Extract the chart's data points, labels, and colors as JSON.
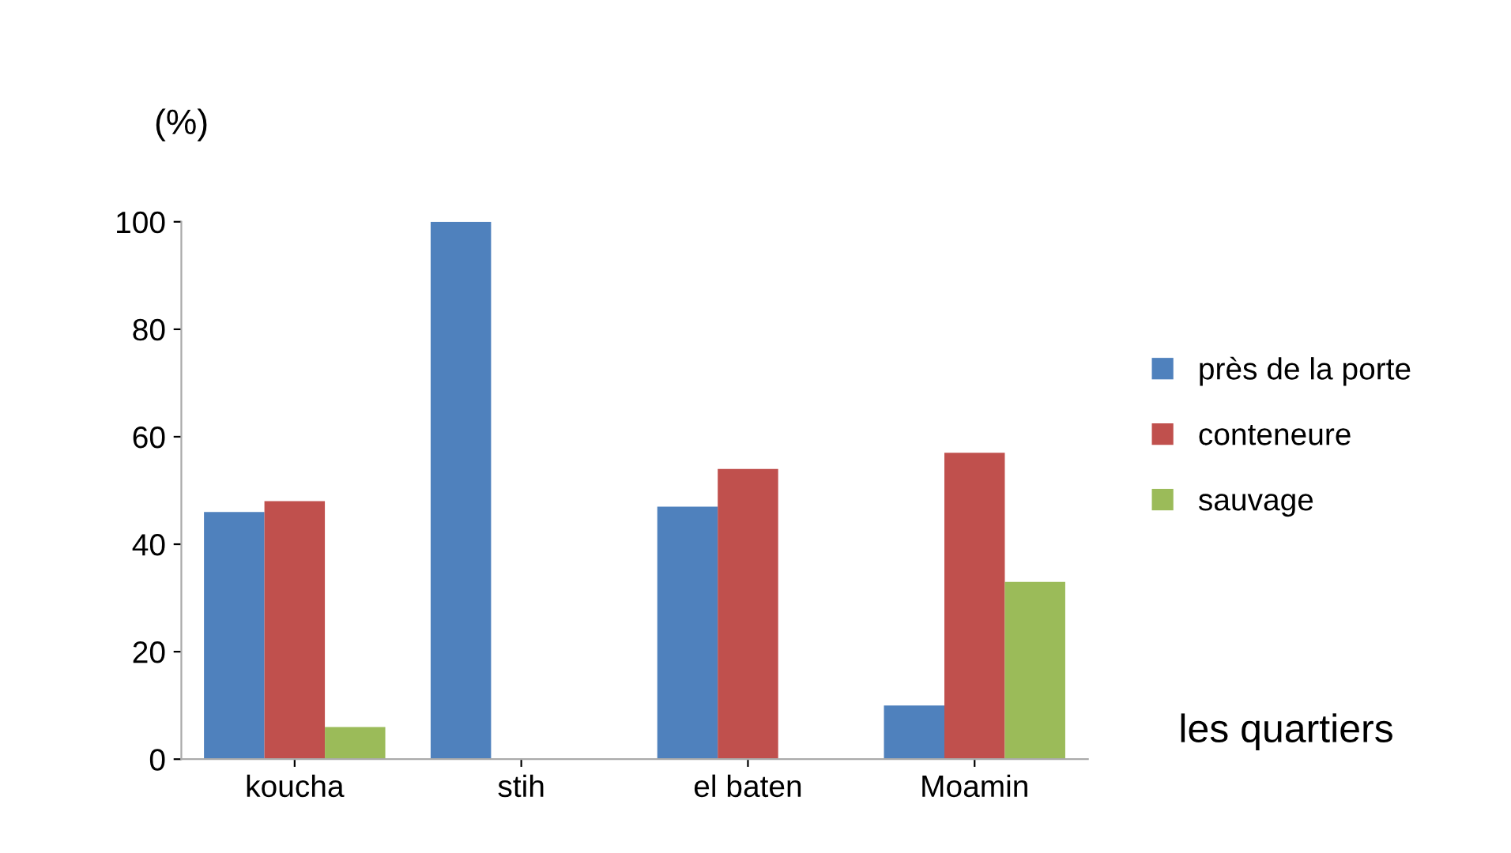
{
  "chart_data": {
    "type": "bar",
    "ylabel": "(%)",
    "xlabel": "les quartiers",
    "categories": [
      "koucha",
      "stih",
      "el baten",
      "Moamin"
    ],
    "series": [
      {
        "name": "près de la porte",
        "color": "#4f81bd",
        "values": [
          46,
          100,
          47,
          10
        ]
      },
      {
        "name": "conteneure",
        "color": "#c0504d",
        "values": [
          48,
          0,
          54,
          57
        ]
      },
      {
        "name": "sauvage",
        "color": "#9bbb59",
        "values": [
          6,
          0,
          0,
          33
        ]
      }
    ],
    "ylim": [
      0,
      100
    ],
    "yticks": [
      0,
      20,
      40,
      60,
      80,
      100
    ],
    "grid": false,
    "legend": "right"
  }
}
